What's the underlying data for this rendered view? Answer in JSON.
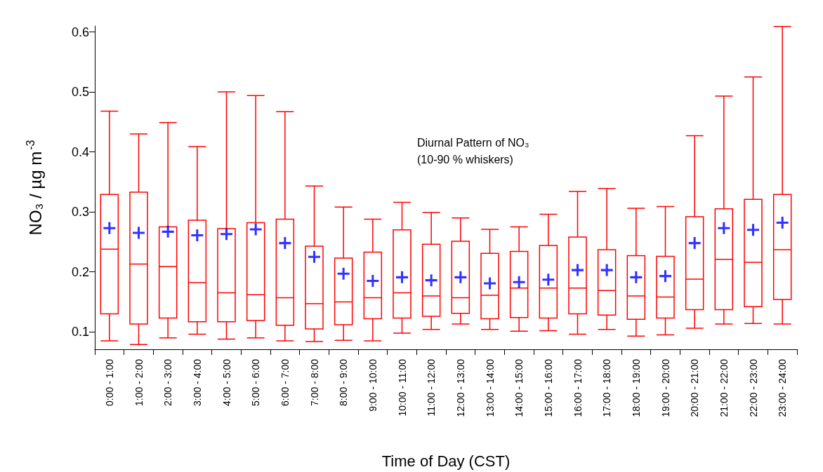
{
  "chart_data": {
    "type": "box",
    "annotations": [
      "Diurnal Pattern of NO₃",
      "(10-90 % whiskers)"
    ],
    "xlabel": "Time of Day (CST)",
    "ylabel": "NO₃ / µg m$^{-3}$",
    "categories": [
      "0:00 - 1:00",
      "1:00 - 2:00",
      "2:00 - 3:00",
      "3:00 - 4:00",
      "4:00 - 5:00",
      "5:00 - 6:00",
      "6:00 - 7:00",
      "7:00 - 8:00",
      "8:00 - 9:00",
      "9:00 - 10:00",
      "10:00 - 11:00",
      "11:00 - 12:00",
      "12:00 - 13:00",
      "13:00 - 14:00",
      "14:00 - 15:00",
      "15:00 - 16:00",
      "16:00 - 17:00",
      "17:00 - 18:00",
      "18:00 - 19:00",
      "19:00 - 20:00",
      "20:00 - 21:00",
      "21:00 - 22:00",
      "22:00 - 23:00",
      "23:00 - 24:00"
    ],
    "ylim": [
      0.071,
      0.61
    ],
    "yticks": [
      0.1,
      0.2,
      0.3,
      0.4,
      0.5,
      0.6
    ],
    "grid": false,
    "series": [
      {
        "color": "#ff0000",
        "boxes": [
          {
            "low": 0.085,
            "q1": 0.13,
            "median": 0.238,
            "q3": 0.329,
            "high": 0.468
          },
          {
            "low": 0.079,
            "q1": 0.113,
            "median": 0.213,
            "q3": 0.333,
            "high": 0.43
          },
          {
            "low": 0.09,
            "q1": 0.123,
            "median": 0.209,
            "q3": 0.275,
            "high": 0.449
          },
          {
            "low": 0.096,
            "q1": 0.117,
            "median": 0.182,
            "q3": 0.286,
            "high": 0.409
          },
          {
            "low": 0.088,
            "q1": 0.117,
            "median": 0.165,
            "q3": 0.272,
            "high": 0.5
          },
          {
            "low": 0.09,
            "q1": 0.119,
            "median": 0.162,
            "q3": 0.282,
            "high": 0.494
          },
          {
            "low": 0.085,
            "q1": 0.111,
            "median": 0.157,
            "q3": 0.288,
            "high": 0.467
          },
          {
            "low": 0.084,
            "q1": 0.105,
            "median": 0.147,
            "q3": 0.243,
            "high": 0.343
          },
          {
            "low": 0.086,
            "q1": 0.112,
            "median": 0.15,
            "q3": 0.223,
            "high": 0.308
          },
          {
            "low": 0.085,
            "q1": 0.122,
            "median": 0.157,
            "q3": 0.233,
            "high": 0.288
          },
          {
            "low": 0.098,
            "q1": 0.123,
            "median": 0.165,
            "q3": 0.27,
            "high": 0.316
          },
          {
            "low": 0.104,
            "q1": 0.126,
            "median": 0.16,
            "q3": 0.246,
            "high": 0.299
          },
          {
            "low": 0.113,
            "q1": 0.131,
            "median": 0.157,
            "q3": 0.251,
            "high": 0.29
          },
          {
            "low": 0.104,
            "q1": 0.122,
            "median": 0.161,
            "q3": 0.231,
            "high": 0.271
          },
          {
            "low": 0.101,
            "q1": 0.124,
            "median": 0.173,
            "q3": 0.234,
            "high": 0.275
          },
          {
            "low": 0.102,
            "q1": 0.123,
            "median": 0.173,
            "q3": 0.244,
            "high": 0.296
          },
          {
            "low": 0.096,
            "q1": 0.13,
            "median": 0.173,
            "q3": 0.258,
            "high": 0.334
          },
          {
            "low": 0.104,
            "q1": 0.128,
            "median": 0.169,
            "q3": 0.237,
            "high": 0.339
          },
          {
            "low": 0.093,
            "q1": 0.121,
            "median": 0.16,
            "q3": 0.227,
            "high": 0.306
          },
          {
            "low": 0.095,
            "q1": 0.123,
            "median": 0.158,
            "q3": 0.226,
            "high": 0.309
          },
          {
            "low": 0.106,
            "q1": 0.137,
            "median": 0.188,
            "q3": 0.292,
            "high": 0.427
          },
          {
            "low": 0.113,
            "q1": 0.137,
            "median": 0.221,
            "q3": 0.305,
            "high": 0.493
          },
          {
            "low": 0.114,
            "q1": 0.142,
            "median": 0.216,
            "q3": 0.321,
            "high": 0.525
          },
          {
            "low": 0.113,
            "q1": 0.154,
            "median": 0.237,
            "q3": 0.329,
            "high": 0.609
          }
        ]
      },
      {
        "type": "scatter",
        "color": "#0000ff",
        "marker": "cross",
        "x": [
          "0:00 - 1:00",
          "1:00 - 2:00",
          "2:00 - 3:00",
          "3:00 - 4:00",
          "4:00 - 5:00",
          "5:00 - 6:00",
          "6:00 - 7:00",
          "7:00 - 8:00",
          "8:00 - 9:00",
          "9:00 - 10:00",
          "10:00 - 11:00",
          "11:00 - 12:00",
          "12:00 - 13:00",
          "13:00 - 14:00",
          "14:00 - 15:00",
          "15:00 - 16:00",
          "16:00 - 17:00",
          "17:00 - 18:00",
          "18:00 - 19:00",
          "19:00 - 20:00",
          "20:00 - 21:00",
          "21:00 - 22:00",
          "22:00 - 23:00",
          "23:00 - 24:00"
        ],
        "values": [
          0.273,
          0.265,
          0.267,
          0.261,
          0.263,
          0.271,
          0.248,
          0.225,
          0.197,
          0.185,
          0.191,
          0.186,
          0.191,
          0.181,
          0.183,
          0.187,
          0.203,
          0.203,
          0.191,
          0.193,
          0.248,
          0.273,
          0.27,
          0.282
        ]
      }
    ]
  }
}
